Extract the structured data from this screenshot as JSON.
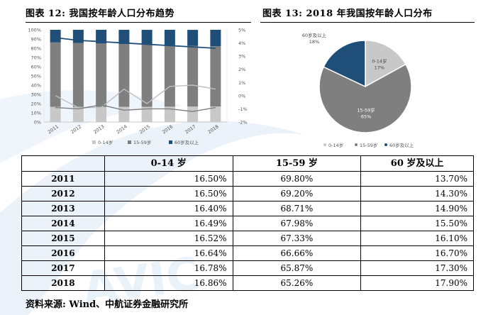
{
  "figure12": {
    "title": "图表 12: 我国按年龄人口分布趋势"
  },
  "figure13": {
    "title": "图表 13: 2018 年我国按年龄人口分布"
  },
  "colors": {
    "age_0_14": "#c8c8c8",
    "age_15_59": "#7f7f7f",
    "age_60_plus": "#1f4e79",
    "watermark": "#dbe9f5"
  },
  "chart_data": [
    {
      "type": "bar",
      "stacked": true,
      "categories": [
        "2011",
        "2012",
        "2013",
        "2014",
        "2015",
        "2016",
        "2017",
        "2018"
      ],
      "series": [
        {
          "name": "0-14岁",
          "values": [
            16.5,
            16.5,
            16.4,
            16.49,
            16.52,
            16.64,
            16.78,
            16.86
          ]
        },
        {
          "name": "15-59岁",
          "values": [
            69.8,
            69.2,
            68.71,
            67.98,
            67.33,
            66.66,
            65.87,
            65.26
          ]
        },
        {
          "name": "60岁及以上",
          "values": [
            13.7,
            14.3,
            14.9,
            15.5,
            16.1,
            16.7,
            17.3,
            17.9
          ]
        }
      ],
      "secondary_lines": [
        {
          "values": [
            0.0,
            -0.9,
            -0.9,
            0.5,
            -0.6,
            0.7,
            0.8,
            0.5
          ],
          "color": "#bfbfbf"
        },
        {
          "values": [
            -0.9,
            -1.0,
            -0.7,
            -1.1,
            -1.0,
            -1.0,
            -1.2,
            -0.9
          ],
          "color": "#7f7f7f"
        },
        {
          "values": [
            4.4,
            4.2,
            4.1,
            4.0,
            3.9,
            3.8,
            3.7,
            3.6
          ],
          "color": "#1f4e79"
        }
      ],
      "yticks_left": [
        "0%",
        "10%",
        "20%",
        "30%",
        "40%",
        "50%",
        "60%",
        "70%",
        "80%",
        "90%",
        "100%"
      ],
      "yticks_right": [
        "-2%",
        "-1%",
        "0%",
        "1%",
        "2%",
        "3%",
        "4%",
        "5%"
      ],
      "ylim": [
        0,
        100
      ],
      "ylim_right": [
        -2,
        5
      ],
      "legend": [
        "0-14岁",
        "15-59岁",
        "60岁及以上"
      ],
      "legend_position": "bottom"
    },
    {
      "type": "pie",
      "labels": [
        "0-14岁",
        "15-59岁",
        "60岁及以上"
      ],
      "values": [
        17,
        65,
        18
      ],
      "value_labels": [
        "17%",
        "65%",
        "18%"
      ],
      "legend": [
        "0-14岁",
        "15-59岁",
        "60岁及以上"
      ],
      "legend_position": "bottom"
    }
  ],
  "table": {
    "headers": [
      "",
      "0-14 岁",
      "15-59 岁",
      "60 岁及以上"
    ],
    "rows": [
      [
        "2011",
        "16.50%",
        "69.80%",
        "13.70%"
      ],
      [
        "2012",
        "16.50%",
        "69.20%",
        "14.30%"
      ],
      [
        "2013",
        "16.40%",
        "68.71%",
        "14.90%"
      ],
      [
        "2014",
        "16.49%",
        "67.98%",
        "15.50%"
      ],
      [
        "2015",
        "16.52%",
        "67.33%",
        "16.10%"
      ],
      [
        "2016",
        "16.64%",
        "66.66%",
        "16.70%"
      ],
      [
        "2017",
        "16.78%",
        "65.87%",
        "17.30%"
      ],
      [
        "2018",
        "16.86%",
        "65.26%",
        "17.90%"
      ]
    ]
  },
  "source": "资料来源: Wind、中航证券金融研究所",
  "watermark_text": "AVIC"
}
